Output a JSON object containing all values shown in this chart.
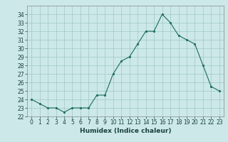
{
  "x": [
    0,
    1,
    2,
    3,
    4,
    5,
    6,
    7,
    8,
    9,
    10,
    11,
    12,
    13,
    14,
    15,
    16,
    17,
    18,
    19,
    20,
    21,
    22,
    23
  ],
  "y": [
    24.0,
    23.5,
    23.0,
    23.0,
    22.5,
    23.0,
    23.0,
    23.0,
    24.5,
    24.5,
    27.0,
    28.5,
    29.0,
    30.5,
    32.0,
    32.0,
    34.0,
    33.0,
    31.5,
    31.0,
    30.5,
    28.0,
    25.5,
    25.0
  ],
  "line_color": "#1a6b5a",
  "marker_color": "#1a6b5a",
  "bg_color": "#cce8e8",
  "grid_color": "#a0c8c8",
  "xlabel": "Humidex (Indice chaleur)",
  "ylim": [
    22,
    35
  ],
  "xlim": [
    -0.5,
    23.5
  ],
  "yticks": [
    22,
    23,
    24,
    25,
    26,
    27,
    28,
    29,
    30,
    31,
    32,
    33,
    34
  ],
  "xticks": [
    0,
    1,
    2,
    3,
    4,
    5,
    6,
    7,
    8,
    9,
    10,
    11,
    12,
    13,
    14,
    15,
    16,
    17,
    18,
    19,
    20,
    21,
    22,
    23
  ],
  "tick_fontsize": 5.5,
  "xlabel_fontsize": 6.5
}
